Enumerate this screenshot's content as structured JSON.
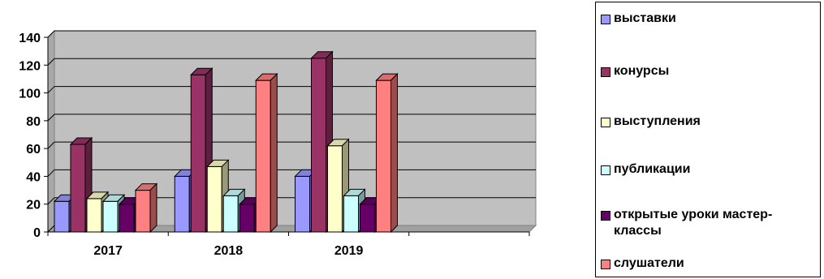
{
  "chart_data": {
    "type": "bar",
    "style": "3d-clustered-column",
    "categories": [
      "2017",
      "2018",
      "2019",
      ""
    ],
    "ylim": [
      0,
      140
    ],
    "yticks": [
      0,
      20,
      40,
      60,
      80,
      100,
      120,
      140
    ],
    "grid": true,
    "legend_position": "right",
    "plot_background": "#c0c0c0",
    "series": [
      {
        "name": "выставки",
        "color": "#9999ff",
        "values": [
          22,
          40,
          40,
          null
        ]
      },
      {
        "name": "конурсы",
        "color": "#993366",
        "values": [
          63,
          113,
          125,
          null
        ]
      },
      {
        "name": "выступления",
        "color": "#ffffcc",
        "values": [
          24,
          47,
          62,
          null
        ]
      },
      {
        "name": "публикации",
        "color": "#ccffff",
        "values": [
          22,
          26,
          26,
          null
        ]
      },
      {
        "name": "открытые уроки мастер-классы",
        "color": "#660066",
        "values": [
          20,
          20,
          20,
          null
        ]
      },
      {
        "name": "слушатели",
        "color": "#ff8080",
        "values": [
          30,
          109,
          109,
          null
        ]
      }
    ]
  }
}
